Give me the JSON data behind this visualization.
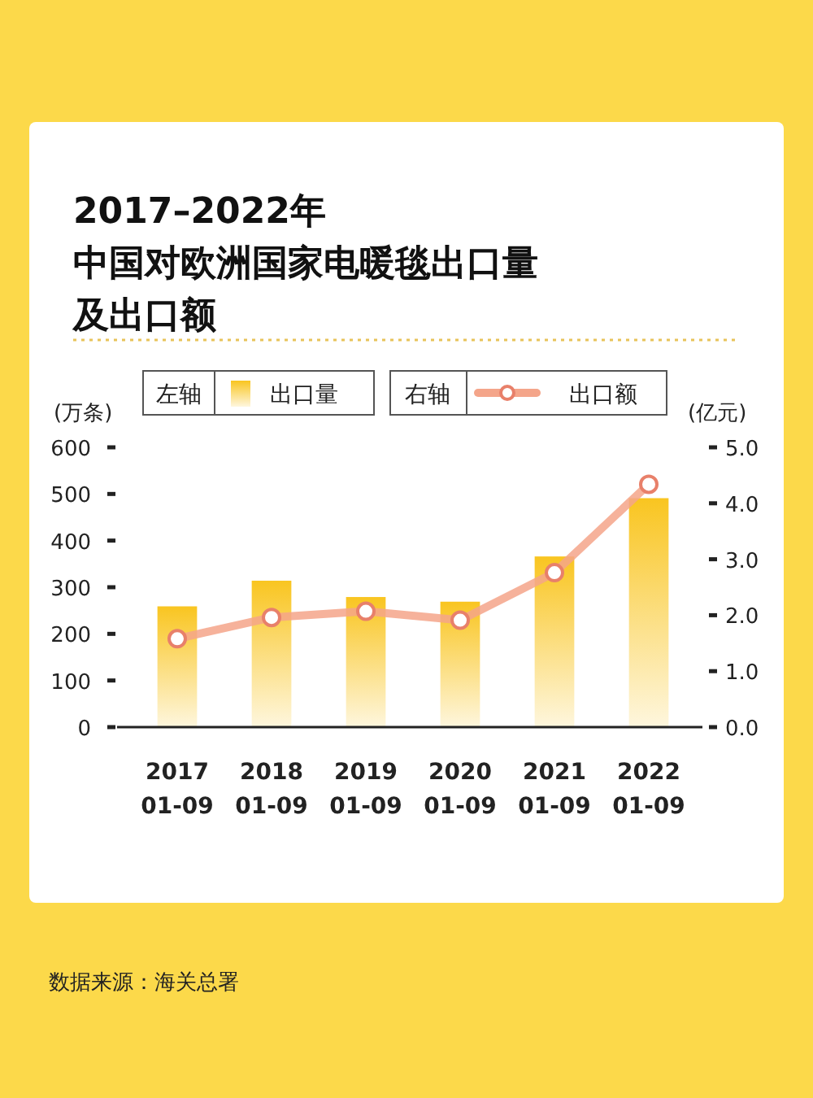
{
  "chart_data": {
    "type": "bar",
    "title": "2017–2022年",
    "subtitle": "中国对欧洲国家电暖毯出口量及出口额",
    "categories": [
      "2017\n01-09",
      "2018\n01-09",
      "2019\n01-09",
      "2020\n01-09",
      "2021\n01-09",
      "2022\n01-09"
    ],
    "series": [
      {
        "name": "出口量",
        "color": "#f9c520",
        "values": [
          259,
          314,
          279,
          269,
          366,
          491
        ]
      },
      {
        "name": "出口额",
        "type": "line",
        "axis": "y2",
        "color": "#f4a58a",
        "marker": "circle",
        "values": [
          1.58,
          1.96,
          2.07,
          1.91,
          2.76,
          4.34
        ]
      }
    ],
    "ylabel": "(万条)",
    "y2label": "(亿元)",
    "ylim": [
      0,
      600
    ],
    "yticks": [
      0,
      100,
      200,
      300,
      400,
      500,
      600
    ],
    "y2lim": [
      0,
      5
    ],
    "y2ticks": [
      {
        "value": 0,
        "label": "0.0"
      },
      {
        "value": 1,
        "label": "1.0"
      },
      {
        "value": 2,
        "label": "2.0"
      },
      {
        "value": 3,
        "label": "3.0"
      },
      {
        "value": 4,
        "label": "4.0"
      },
      {
        "value": 5,
        "label": "5.0"
      }
    ],
    "legend": "top",
    "grid": false,
    "annotations": [
      "左轴",
      "右轴",
      "数据来源：海关总署"
    ]
  }
}
